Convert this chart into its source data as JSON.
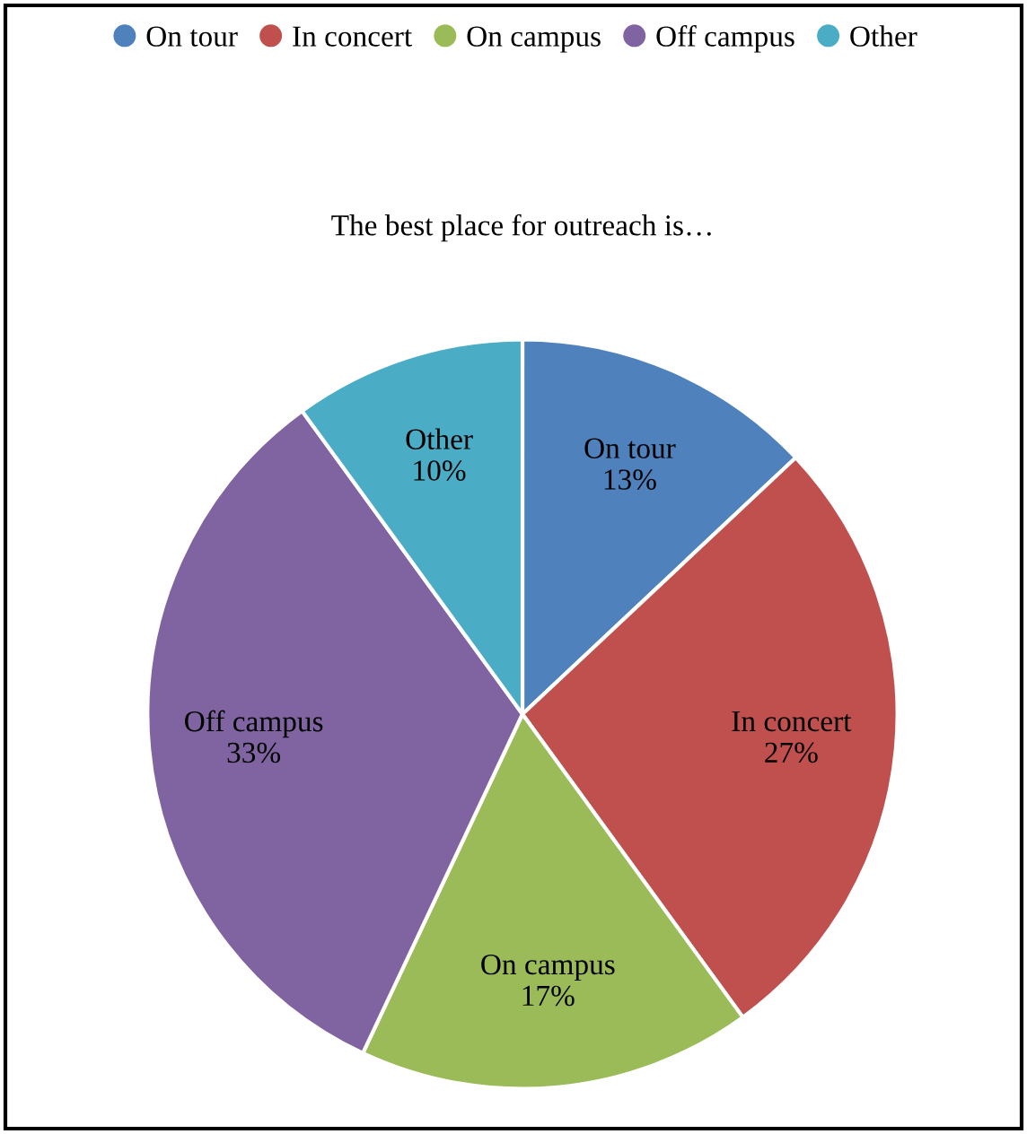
{
  "chart_data": {
    "type": "pie",
    "title": "The best place for outreach is…",
    "categories": [
      "On tour",
      "In concert",
      "On campus",
      "Off campus",
      "Other"
    ],
    "values": [
      13,
      27,
      17,
      33,
      10
    ],
    "value_labels": [
      "13%",
      "27%",
      "17%",
      "33%",
      "10%"
    ],
    "colors": [
      "#4f81bd",
      "#c0504d",
      "#9bbb59",
      "#8064a2",
      "#4bacc6"
    ],
    "legend": "top"
  }
}
